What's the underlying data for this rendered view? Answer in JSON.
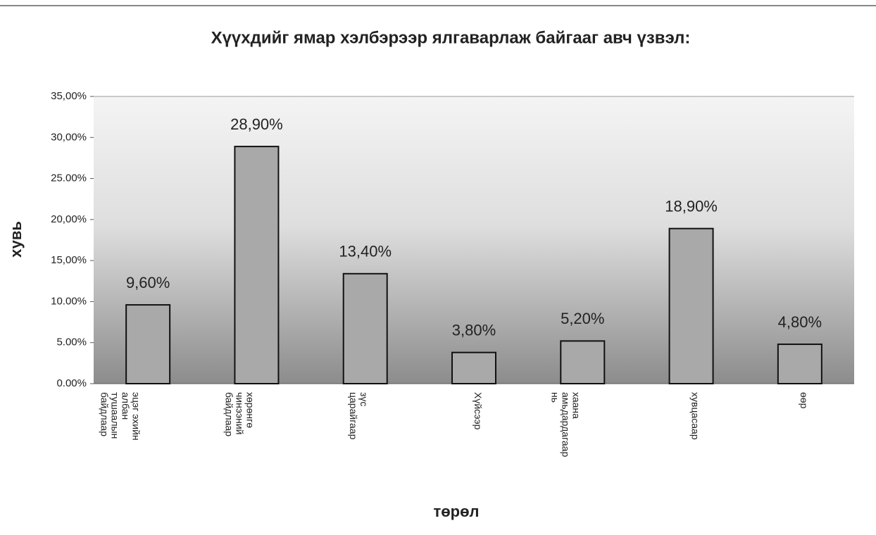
{
  "chart_data": {
    "type": "bar",
    "title": "Хүүхдийг ямар хэлбэрээр ялгаварлаж байгааг авч үзвэл:",
    "x_label": "төрөл",
    "y_label": "хувь",
    "categories": [
      "эцэг эхийн албан тушаалын байдлаар",
      "хөрөнгө чинээний байдлаар",
      "зүс царайгаар",
      "Хүйсээр",
      "хаана амьдардагаар нь",
      "хувцасаар",
      "өөр"
    ],
    "values": [
      9.6,
      28.9,
      13.4,
      3.8,
      5.2,
      18.9,
      4.8
    ],
    "value_labels": [
      "9,60%",
      "28,90%",
      "13,40%",
      "3,80%",
      "5,20%",
      "18,90%",
      "4,80%"
    ],
    "color": "#a9a9a9",
    "ylim": [
      0,
      35
    ],
    "yticks": [
      {
        "value": 0,
        "label": "0.00%"
      },
      {
        "value": 5,
        "label": "5.00%"
      },
      {
        "value": 10,
        "label": "10.00%"
      },
      {
        "value": 15,
        "label": "15,00%"
      },
      {
        "value": 20,
        "label": "20,00%"
      },
      {
        "value": 25,
        "label": "25.00%"
      },
      {
        "value": 30,
        "label": "30,00%"
      },
      {
        "value": 35,
        "label": "35,00%"
      }
    ]
  }
}
